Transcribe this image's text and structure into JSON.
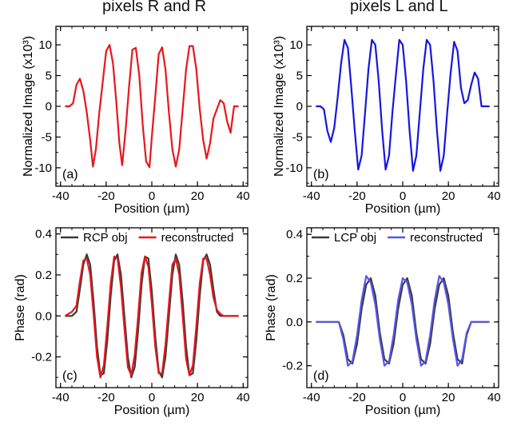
{
  "titles": {
    "left": "pixels R and R̄",
    "right": "pixels L and L̄"
  },
  "chart_data": [
    {
      "type": "line",
      "panel": "(a)",
      "color": "#e8161b",
      "xlabel": "Position (µm)",
      "ylabel": "Normalized Image (x10³)",
      "xlim": [
        -42,
        42
      ],
      "ylim": [
        -13,
        13
      ],
      "xticks": [
        -40,
        -20,
        0,
        20,
        40
      ],
      "yticks": [
        -10,
        -5,
        0,
        5,
        10
      ],
      "series": [
        {
          "name": "",
          "x": [
            -38,
            -36,
            -34.5,
            -33,
            -31.5,
            -30,
            -28.5,
            -27,
            -25.8,
            -24.5,
            -23,
            -21.5,
            -20,
            -18.5,
            -17,
            -15.5,
            -14.2,
            -13,
            -11.5,
            -10,
            -8.5,
            -7,
            -5.5,
            -4,
            -2.5,
            -1,
            0.2,
            1.5,
            3,
            4.5,
            6,
            7.5,
            9,
            10.5,
            12,
            13.5,
            15,
            16.5,
            18,
            19.5,
            21,
            22.5,
            24,
            25.5,
            27,
            28.5,
            30,
            31.5,
            33,
            34.5,
            36,
            38
          ],
          "y": [
            0,
            0,
            0.5,
            3.5,
            4.5,
            2.5,
            -1,
            -5.5,
            -9.8,
            -7,
            -1,
            4,
            9,
            10,
            7,
            0.5,
            -6,
            -9.6,
            -4,
            3,
            9.2,
            9.5,
            5,
            -3,
            -9,
            -9.9,
            -4,
            1.5,
            8.5,
            9.6,
            6,
            -1,
            -7,
            -9.8,
            -7,
            -0.5,
            6,
            9.8,
            9.8,
            6,
            -0.5,
            -5.5,
            -8.5,
            -6,
            -2,
            -0.5,
            1,
            0.5,
            -2.5,
            -4.3,
            0,
            0
          ]
        }
      ]
    },
    {
      "type": "line",
      "panel": "(b)",
      "color": "#1616e0",
      "xlabel": "Position (µm)",
      "ylabel": "Normalized Image (x10³)",
      "xlim": [
        -42,
        42
      ],
      "ylim": [
        -13,
        13
      ],
      "xticks": [
        -40,
        -20,
        0,
        20,
        40
      ],
      "yticks": [
        -10,
        -5,
        0,
        5,
        10
      ],
      "series": [
        {
          "name": "",
          "x": [
            -38,
            -36,
            -34.5,
            -33,
            -31.5,
            -30,
            -28.5,
            -27,
            -25.5,
            -24,
            -22.5,
            -21,
            -19.5,
            -18,
            -16.5,
            -15,
            -13.5,
            -12,
            -10.5,
            -9,
            -7.5,
            -6,
            -4.5,
            -3,
            -1.5,
            0,
            1.5,
            3,
            4.5,
            6,
            7.5,
            9,
            10.5,
            12,
            13.5,
            15,
            16.5,
            18,
            19.5,
            21,
            22.5,
            24,
            25.5,
            27,
            28.5,
            30,
            31.5,
            33,
            34.5,
            36,
            38
          ],
          "y": [
            0,
            0,
            -0.5,
            -4,
            -5.8,
            -3.5,
            1.5,
            7,
            10.8,
            9.5,
            3,
            -4,
            -10.3,
            -8,
            -1,
            6,
            10.8,
            10,
            4,
            -4,
            -10.3,
            -8,
            -1,
            5,
            10.8,
            10,
            4,
            -4,
            -10.5,
            -8,
            -1,
            6,
            10.8,
            10,
            4,
            -4,
            -10.5,
            -8,
            -1,
            5.5,
            10.5,
            9,
            3,
            0.5,
            1,
            3.5,
            5.5,
            4.5,
            0,
            0,
            0
          ]
        }
      ]
    },
    {
      "type": "line",
      "panel": "(c)",
      "xlabel": "Position (µm)",
      "ylabel": "Phase (rad)",
      "xlim": [
        -42,
        42
      ],
      "ylim": [
        -0.35,
        0.43
      ],
      "xticks": [
        -40,
        -20,
        0,
        20,
        40
      ],
      "yticks": [
        -0.2,
        0.0,
        0.2,
        0.4
      ],
      "legend": "top",
      "series": [
        {
          "name": "RCP obj",
          "color": "#3a3a3a",
          "x": [
            -38,
            -35,
            -33,
            -31.5,
            -30,
            -28.5,
            -27,
            -25.5,
            -24,
            -22.5,
            -21,
            -19.5,
            -18,
            -16.5,
            -15,
            -13.5,
            -12,
            -10.5,
            -9,
            -7.5,
            -6,
            -4.5,
            -3,
            -1.5,
            0,
            1.5,
            3,
            4.5,
            6,
            7.5,
            9,
            10.5,
            12,
            13.5,
            15,
            16.5,
            18,
            19.5,
            21,
            22.5,
            24,
            25.5,
            27,
            28.5,
            30,
            31.5,
            33,
            35,
            38
          ],
          "y": [
            0,
            0,
            0.02,
            0.13,
            0.25,
            0.3,
            0.25,
            0.07,
            -0.15,
            -0.29,
            -0.28,
            -0.12,
            0.1,
            0.27,
            0.3,
            0.2,
            0.0,
            -0.2,
            -0.3,
            -0.25,
            -0.07,
            0.15,
            0.29,
            0.28,
            0.12,
            -0.1,
            -0.27,
            -0.3,
            -0.2,
            0.0,
            0.2,
            0.3,
            0.25,
            0.07,
            -0.15,
            -0.29,
            -0.28,
            -0.12,
            0.1,
            0.27,
            0.3,
            0.25,
            0.13,
            0.02,
            0.0,
            0.0,
            0.0,
            0.0,
            0.0
          ]
        },
        {
          "name": "reconstructed",
          "color": "#e8161b",
          "x": [
            -38,
            -35,
            -33,
            -31.5,
            -30,
            -28.5,
            -27,
            -25.5,
            -24,
            -22.5,
            -21,
            -19.5,
            -18,
            -16.5,
            -15,
            -13.5,
            -12,
            -10.5,
            -9,
            -7.5,
            -6,
            -4.5,
            -3,
            -1.5,
            0,
            1.5,
            3,
            4.5,
            6,
            7.5,
            9,
            10.5,
            12,
            13.5,
            15,
            16.5,
            18,
            19.5,
            21,
            22.5,
            24,
            25.5,
            27,
            28.5,
            30,
            31.5,
            33,
            35,
            38
          ],
          "y": [
            0,
            0.02,
            0.05,
            0.17,
            0.27,
            0.28,
            0.2,
            0.01,
            -0.2,
            -0.3,
            -0.24,
            -0.05,
            0.16,
            0.29,
            0.28,
            0.14,
            -0.06,
            -0.25,
            -0.29,
            -0.19,
            0.0,
            0.21,
            0.29,
            0.24,
            0.06,
            -0.15,
            -0.28,
            -0.28,
            -0.14,
            0.06,
            0.25,
            0.28,
            0.2,
            0.0,
            -0.21,
            -0.29,
            -0.24,
            -0.05,
            0.16,
            0.28,
            0.28,
            0.2,
            0.09,
            0.03,
            0.01,
            0.0,
            0.0,
            0.0,
            0.0
          ]
        }
      ]
    },
    {
      "type": "line",
      "panel": "(d)",
      "xlabel": "Position (µm)",
      "ylabel": "Phase (rad)",
      "xlim": [
        -42,
        42
      ],
      "ylim": [
        -0.3,
        0.43
      ],
      "xticks": [
        -40,
        -20,
        0,
        20,
        40
      ],
      "yticks": [
        -0.2,
        0.0,
        0.2,
        0.4
      ],
      "legend": "top",
      "series": [
        {
          "name": "LCP obj",
          "color": "#3a3a3a",
          "x": [
            -38,
            -33,
            -30,
            -28,
            -26,
            -24,
            -22,
            -20,
            -18,
            -16,
            -14,
            -12,
            -10,
            -8,
            -6,
            -4,
            -2,
            0,
            2,
            4,
            6,
            8,
            10,
            12,
            14,
            16,
            18,
            20,
            22,
            24,
            26,
            28,
            30,
            33,
            38
          ],
          "y": [
            0,
            0,
            0,
            0,
            -0.06,
            -0.17,
            -0.19,
            -0.1,
            0.06,
            0.17,
            0.2,
            0.12,
            -0.05,
            -0.17,
            -0.19,
            -0.1,
            0.06,
            0.17,
            0.2,
            0.12,
            -0.05,
            -0.17,
            -0.19,
            -0.1,
            0.06,
            0.17,
            0.2,
            0.12,
            -0.05,
            -0.17,
            -0.19,
            -0.06,
            0,
            0,
            0
          ]
        },
        {
          "name": "reconstructed",
          "color": "#5555ee",
          "x": [
            -38,
            -33,
            -30,
            -28,
            -26,
            -24,
            -22,
            -20,
            -18,
            -16,
            -14,
            -12,
            -10,
            -8,
            -6,
            -4,
            -2,
            0,
            2,
            4,
            6,
            8,
            10,
            12,
            14,
            16,
            18,
            20,
            22,
            24,
            26,
            28,
            30,
            33,
            38
          ],
          "y": [
            0,
            0,
            0,
            0,
            -0.08,
            -0.2,
            -0.18,
            -0.06,
            0.1,
            0.21,
            0.18,
            0.08,
            -0.08,
            -0.2,
            -0.18,
            -0.06,
            0.1,
            0.2,
            0.18,
            0.08,
            -0.08,
            -0.2,
            -0.18,
            -0.06,
            0.1,
            0.21,
            0.18,
            0.08,
            -0.08,
            -0.2,
            -0.17,
            -0.05,
            0,
            0,
            0
          ]
        }
      ]
    }
  ]
}
